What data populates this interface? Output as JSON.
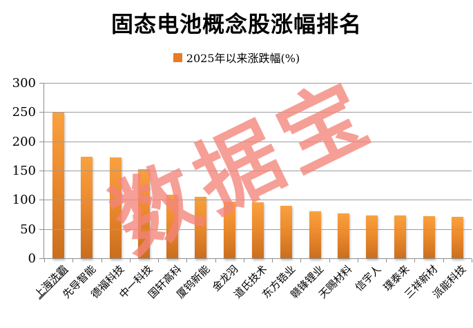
{
  "title": "固态电池概念股涨幅排名",
  "legend": {
    "label": "2025年以来涨跌幅(%)"
  },
  "watermark": "数据宝",
  "chart_data": {
    "type": "bar",
    "title": "固态电池概念股涨幅排名",
    "legend_entries": [
      "2025年以来涨跌幅(%)"
    ],
    "legend_position": "top",
    "categories": [
      "上海洗霸",
      "先导智能",
      "德福科技",
      "中一科技",
      "国轩高科",
      "厦钨新能",
      "金龙羽",
      "道氏技术",
      "东方锆业",
      "赣锋锂业",
      "天赐材料",
      "信宇人",
      "璞泰来",
      "三祥新材",
      "派能科技"
    ],
    "series": [
      {
        "name": "2025年以来涨跌幅(%)",
        "values": [
          250,
          175,
          174,
          154,
          110,
          106,
          98,
          97,
          91,
          82,
          78,
          75,
          74,
          73,
          72
        ]
      }
    ],
    "ylabel": "",
    "xlabel": "",
    "ylim": [
      0,
      300
    ],
    "yticks": [
      0,
      50,
      100,
      150,
      200,
      250,
      300
    ],
    "grid": true,
    "first_category_underlined": true,
    "watermark_text": "数据宝",
    "colors": {
      "bar_top": "#f9a13e",
      "bar_bottom": "#c96e1e",
      "legend_square": "#e87b26",
      "gridline": "#9b9b9b",
      "watermark": "rgba(243,132,122,0.78)",
      "title_text": "#000000"
    }
  }
}
